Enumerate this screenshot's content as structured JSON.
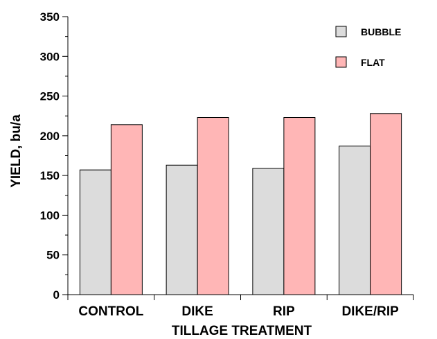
{
  "chart_data": {
    "type": "bar",
    "title": "",
    "xlabel": "TILLAGE TREATMENT",
    "ylabel": "YIELD, bu/a",
    "ylim": [
      0,
      350
    ],
    "yticks": [
      0,
      50,
      100,
      150,
      200,
      250,
      300,
      350
    ],
    "categories": [
      "CONTROL",
      "DIKE",
      "RIP",
      "DIKE/RIP"
    ],
    "series": [
      {
        "name": "BUBBLE",
        "color": "#dcdcdc",
        "values": [
          157,
          163,
          159,
          187
        ]
      },
      {
        "name": "FLAT",
        "color": "#ffb6b6",
        "values": [
          214,
          223,
          223,
          228
        ]
      }
    ],
    "grid": false,
    "legend_position": "top-right"
  }
}
